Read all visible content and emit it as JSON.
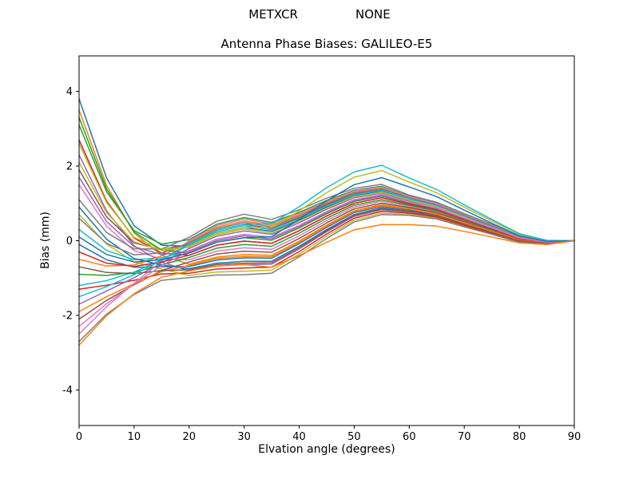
{
  "header": {
    "left": "METXCR",
    "right": "NONE"
  },
  "chart_data": {
    "type": "line",
    "title": "Antenna Phase Biases: GALILEO-E5",
    "xlabel": "Elvation angle (degrees)",
    "ylabel": "Bias (mm)",
    "xlim": [
      0,
      90
    ],
    "ylim": [
      -4.95,
      4.95
    ],
    "xticks": [
      0,
      10,
      20,
      30,
      40,
      50,
      60,
      70,
      80,
      90
    ],
    "yticks": [
      -4,
      -2,
      0,
      2,
      4
    ],
    "grid": false,
    "legend": "none",
    "x": [
      0,
      5,
      10,
      15,
      20,
      25,
      30,
      35,
      40,
      45,
      50,
      55,
      60,
      65,
      70,
      75,
      80,
      85,
      90
    ],
    "series": [
      {
        "color": "#1f77b4",
        "values": [
          3.8,
          1.68,
          0.4,
          -0.12,
          -0.15,
          0.2,
          0.35,
          0.25,
          0.55,
          0.9,
          1.2,
          1.33,
          1.1,
          0.93,
          0.65,
          0.38,
          0.1,
          -0.03,
          0
        ]
      },
      {
        "color": "#ff7f0e",
        "values": [
          3.5,
          1.48,
          0.21,
          -0.39,
          -0.63,
          -0.44,
          -0.37,
          -0.39,
          -0.01,
          0.42,
          0.8,
          0.97,
          0.86,
          0.73,
          0.49,
          0.26,
          0.02,
          -0.07,
          0
        ]
      },
      {
        "color": "#2ca02c",
        "values": [
          3.1,
          1.31,
          0.27,
          -0.09,
          0.03,
          0.44,
          0.62,
          0.49,
          0.76,
          1.08,
          1.35,
          1.46,
          1.19,
          1.0,
          0.71,
          0.42,
          0.13,
          -0.01,
          0
        ]
      },
      {
        "color": "#d62728",
        "values": [
          2.7,
          1.06,
          0.07,
          -0.33,
          -0.39,
          -0.12,
          -0.01,
          -0.07,
          0.27,
          0.66,
          1.0,
          1.15,
          0.98,
          0.83,
          0.57,
          0.32,
          0.06,
          -0.05,
          0
        ]
      },
      {
        "color": "#9467bd",
        "values": [
          2.3,
          0.8,
          -0.14,
          -0.57,
          -0.81,
          -0.68,
          -0.64,
          -0.63,
          -0.22,
          0.24,
          0.65,
          0.83,
          0.77,
          0.65,
          0.43,
          0.21,
          -0.01,
          -0.08,
          0
        ]
      },
      {
        "color": "#8c564b",
        "values": [
          1.9,
          0.64,
          -0.06,
          -0.24,
          -0.09,
          0.28,
          0.44,
          0.33,
          0.62,
          0.96,
          1.25,
          1.37,
          1.13,
          0.95,
          0.67,
          0.39,
          0.11,
          -0.02,
          0
        ]
      },
      {
        "color": "#e377c2",
        "values": [
          1.5,
          0.39,
          -0.27,
          -0.49,
          -0.51,
          -0.28,
          -0.19,
          -0.23,
          0.13,
          0.54,
          0.9,
          1.06,
          0.92,
          0.78,
          0.53,
          0.29,
          0.04,
          -0.06,
          0
        ]
      },
      {
        "color": "#7f7f7f",
        "values": [
          1.1,
          0.22,
          -0.22,
          -0.22,
          0.09,
          0.52,
          0.71,
          0.57,
          0.83,
          1.14,
          1.4,
          1.51,
          1.22,
          1.03,
          0.73,
          0.44,
          0.14,
          0.0,
          0
        ]
      },
      {
        "color": "#bcbd22",
        "values": [
          0.7,
          -0.09,
          -0.57,
          -0.76,
          -0.93,
          -0.84,
          -0.82,
          -0.79,
          -0.36,
          0.12,
          0.55,
          0.74,
          0.71,
          0.6,
          0.39,
          0.18,
          -0.03,
          -0.09,
          0
        ]
      },
      {
        "color": "#17becf",
        "values": [
          0.3,
          -0.26,
          -0.51,
          -0.46,
          -0.27,
          0.04,
          0.17,
          0.09,
          0.41,
          0.78,
          1.1,
          1.24,
          1.04,
          0.88,
          0.61,
          0.35,
          0.08,
          -0.04,
          0
        ]
      },
      {
        "color": "#1f77b4",
        "values": [
          -0.1,
          -0.51,
          -0.71,
          -0.7,
          -0.69,
          -0.52,
          -0.46,
          -0.47,
          -0.08,
          0.36,
          0.75,
          0.92,
          0.83,
          0.7,
          0.47,
          0.24,
          0.01,
          -0.07,
          0
        ]
      },
      {
        "color": "#ff7f0e",
        "values": [
          -0.5,
          -0.68,
          -0.65,
          -0.41,
          -0.03,
          0.36,
          0.53,
          0.41,
          0.69,
          1.02,
          1.3,
          1.42,
          1.16,
          0.98,
          0.69,
          0.41,
          0.12,
          -0.02,
          0
        ]
      },
      {
        "color": "#2ca02c",
        "values": [
          -0.9,
          -0.93,
          -0.85,
          -0.65,
          -0.45,
          -0.2,
          -0.1,
          -0.15,
          0.2,
          0.6,
          0.95,
          1.1,
          0.95,
          0.8,
          0.55,
          0.3,
          0.05,
          -0.05,
          0
        ]
      },
      {
        "color": "#d62728",
        "values": [
          -1.3,
          -1.19,
          -1.06,
          -0.89,
          -0.87,
          -0.76,
          -0.73,
          -0.71,
          -0.29,
          0.18,
          0.6,
          0.79,
          0.74,
          0.63,
          0.41,
          0.2,
          -0.02,
          -0.09,
          0
        ]
      },
      {
        "color": "#9467bd",
        "values": [
          -1.7,
          -1.35,
          -0.99,
          -0.59,
          -0.21,
          0.12,
          0.26,
          0.17,
          0.48,
          0.84,
          1.15,
          1.28,
          1.07,
          0.9,
          0.63,
          0.36,
          0.09,
          -0.03,
          0
        ]
      },
      {
        "color": "#8c564b",
        "values": [
          -2.1,
          -1.6,
          -1.18,
          -0.8,
          -0.57,
          -0.36,
          -0.28,
          -0.31,
          0.06,
          0.48,
          0.85,
          1.01,
          0.89,
          0.75,
          0.51,
          0.27,
          0.03,
          -0.06,
          0
        ]
      },
      {
        "color": "#e377c2",
        "values": [
          -2.5,
          -1.77,
          -1.14,
          -0.55,
          0.0,
          0.4,
          0.58,
          0.45,
          0.73,
          1.05,
          1.33,
          1.44,
          1.18,
          0.99,
          0.7,
          0.41,
          0.13,
          -0.01,
          0
        ]
      },
      {
        "color": "#7f7f7f",
        "values": [
          -2.7,
          -1.97,
          -1.44,
          -1.06,
          -0.99,
          -0.92,
          -0.91,
          -0.87,
          -0.43,
          0.06,
          0.5,
          0.7,
          0.68,
          0.58,
          0.37,
          0.17,
          -0.04,
          -0.1,
          0
        ]
      },
      {
        "color": "#bcbd22",
        "values": [
          2.6,
          1.02,
          0.09,
          -0.23,
          -0.18,
          0.16,
          0.31,
          0.21,
          0.52,
          0.87,
          1.18,
          1.3,
          1.09,
          0.91,
          0.64,
          0.37,
          0.1,
          -0.03,
          0
        ]
      },
      {
        "color": "#17becf",
        "values": [
          -1.2,
          -1.07,
          -0.84,
          -0.51,
          -0.12,
          0.24,
          0.4,
          0.29,
          0.59,
          0.93,
          1.23,
          1.35,
          1.12,
          0.94,
          0.66,
          0.38,
          0.11,
          -0.02,
          0
        ]
      },
      {
        "color": "#1f77b4",
        "values": [
          0.9,
          0.04,
          -0.48,
          -0.65,
          -0.75,
          -0.6,
          -0.55,
          -0.55,
          -0.15,
          0.3,
          0.7,
          0.88,
          0.8,
          0.68,
          0.45,
          0.23,
          0.0,
          -0.08,
          0
        ]
      },
      {
        "color": "#ff7f0e",
        "values": [
          -1.9,
          -1.5,
          -1.15,
          -0.83,
          -0.66,
          -0.48,
          -0.42,
          -0.43,
          -0.05,
          0.39,
          0.78,
          0.94,
          0.85,
          0.71,
          0.48,
          0.25,
          0.02,
          -0.07,
          0
        ]
      },
      {
        "color": "#2ca02c",
        "values": [
          3.3,
          1.39,
          0.23,
          -0.25,
          -0.33,
          -0.04,
          0.08,
          0.01,
          0.34,
          0.72,
          1.05,
          1.19,
          1.01,
          0.85,
          0.59,
          0.33,
          0.07,
          -0.04,
          0
        ]
      },
      {
        "color": "#d62728",
        "values": [
          -0.3,
          -0.6,
          -0.69,
          -0.57,
          -0.39,
          -0.12,
          -0.01,
          -0.07,
          0.27,
          0.66,
          1.0,
          1.15,
          0.98,
          0.83,
          0.57,
          0.32,
          0.06,
          -0.05,
          0
        ]
      },
      {
        "color": "#9467bd",
        "values": [
          1.7,
          0.51,
          -0.16,
          -0.37,
          -0.3,
          0.0,
          0.13,
          0.05,
          0.38,
          0.75,
          1.08,
          1.21,
          1.03,
          0.86,
          0.6,
          0.34,
          0.08,
          -0.04,
          0
        ]
      },
      {
        "color": "#8c564b",
        "values": [
          -0.7,
          -0.85,
          -0.88,
          -0.8,
          -0.78,
          -0.64,
          -0.6,
          -0.59,
          -0.19,
          0.27,
          0.68,
          0.85,
          0.79,
          0.66,
          0.44,
          0.22,
          0.0,
          -0.08,
          0
        ]
      },
      {
        "color": "#e377c2",
        "values": [
          -2.3,
          -1.69,
          -1.16,
          -0.67,
          -0.27,
          0.04,
          0.17,
          0.09,
          0.41,
          0.78,
          1.1,
          1.24,
          1.04,
          0.88,
          0.61,
          0.35,
          0.08,
          -0.04,
          0
        ]
      },
      {
        "color": "#7f7f7f",
        "values": [
          0.6,
          -0.07,
          -0.38,
          -0.33,
          -0.06,
          0.32,
          0.49,
          0.37,
          0.66,
          0.99,
          1.28,
          1.39,
          1.15,
          0.96,
          0.68,
          0.4,
          0.12,
          -0.02,
          0
        ]
      },
      {
        "color": "#bcbd22",
        "values": [
          2.1,
          0.75,
          -0.03,
          -0.26,
          -0.15,
          0.2,
          0.35,
          0.36,
          0.8,
          1.29,
          1.7,
          1.88,
          1.57,
          1.28,
          0.9,
          0.53,
          0.17,
          0.0,
          0
        ]
      },
      {
        "color": "#17becf",
        "values": [
          -1.5,
          -1.23,
          -0.91,
          -0.52,
          -0.09,
          0.28,
          0.44,
          0.46,
          0.91,
          1.42,
          1.84,
          2.02,
          1.68,
          1.37,
          0.96,
          0.57,
          0.19,
          0.01,
          0
        ]
      },
      {
        "color": "#1f77b4",
        "values": [
          0.1,
          -0.37,
          -0.57,
          -0.51,
          -0.33,
          -0.04,
          0.08,
          0.11,
          0.57,
          1.07,
          1.5,
          1.69,
          1.44,
          1.18,
          0.82,
          0.47,
          0.13,
          -0.02,
          0
        ]
      },
      {
        "color": "#ff7f0e",
        "values": [
          -2.8,
          -2.01,
          -1.42,
          -0.98,
          -0.81,
          -0.68,
          -0.64,
          -0.71,
          -0.4,
          -0.04,
          0.29,
          0.43,
          0.43,
          0.39,
          0.25,
          0.1,
          -0.06,
          -0.1,
          0
        ]
      }
    ]
  }
}
